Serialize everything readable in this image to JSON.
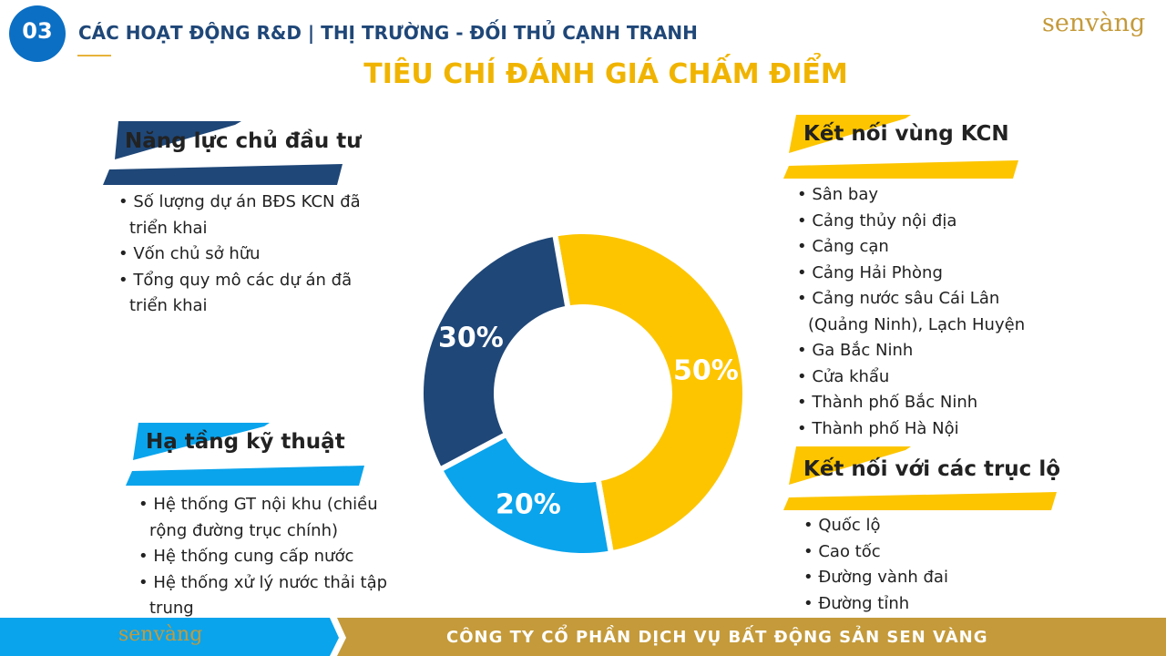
{
  "header": {
    "number": "03",
    "title": "CÁC HOẠT ĐỘNG R&D | THỊ TRƯỜNG - ĐỐI THỦ CẠNH TRANH",
    "logo": "senvàng"
  },
  "title": "TIÊU CHÍ ĐÁNH GIÁ CHẤM ĐIỂM",
  "sections": [
    {
      "heading": "Năng lực chủ đầu tư",
      "items": [
        "Số lượng dự án BĐS KCN đã triển khai",
        "Vốn chủ sở hữu",
        "Tổng quy mô các dự án đã triển khai"
      ]
    },
    {
      "heading": "Hạ tầng kỹ thuật",
      "items": [
        "Hệ thống GT nội khu (chiều rộng đường trục chính)",
        "Hệ thống cung cấp nước",
        "Hệ thống xử lý nước thải tập trung"
      ]
    },
    {
      "heading": "Kết nối vùng KCN",
      "items": [
        "Sân bay",
        "Cảng thủy nội địa",
        "Cảng cạn",
        "Cảng Hải Phòng",
        "Cảng nước sâu Cái Lân (Quảng Ninh), Lạch Huyện",
        "Ga Bắc Ninh",
        "Cửa khẩu",
        "Thành phố Bắc Ninh",
        "Thành phố Hà Nội"
      ]
    },
    {
      "heading": "Kết nối với các trục lộ",
      "items": [
        "Quốc lộ",
        "Cao tốc",
        "Đường vành đai",
        "Đường tỉnh"
      ]
    }
  ],
  "chart_data": {
    "type": "pie",
    "values": [
      50,
      20,
      30
    ],
    "value_labels": [
      "50%",
      "20%",
      "30%"
    ],
    "colors": [
      "#fdc500",
      "#0aa4ec",
      "#1f4778"
    ]
  },
  "footer": {
    "logo": "senvàng",
    "company": "CÔNG TY CỔ PHẦN DỊCH VỤ BẤT ĐỘNG SẢN SEN VÀNG"
  }
}
